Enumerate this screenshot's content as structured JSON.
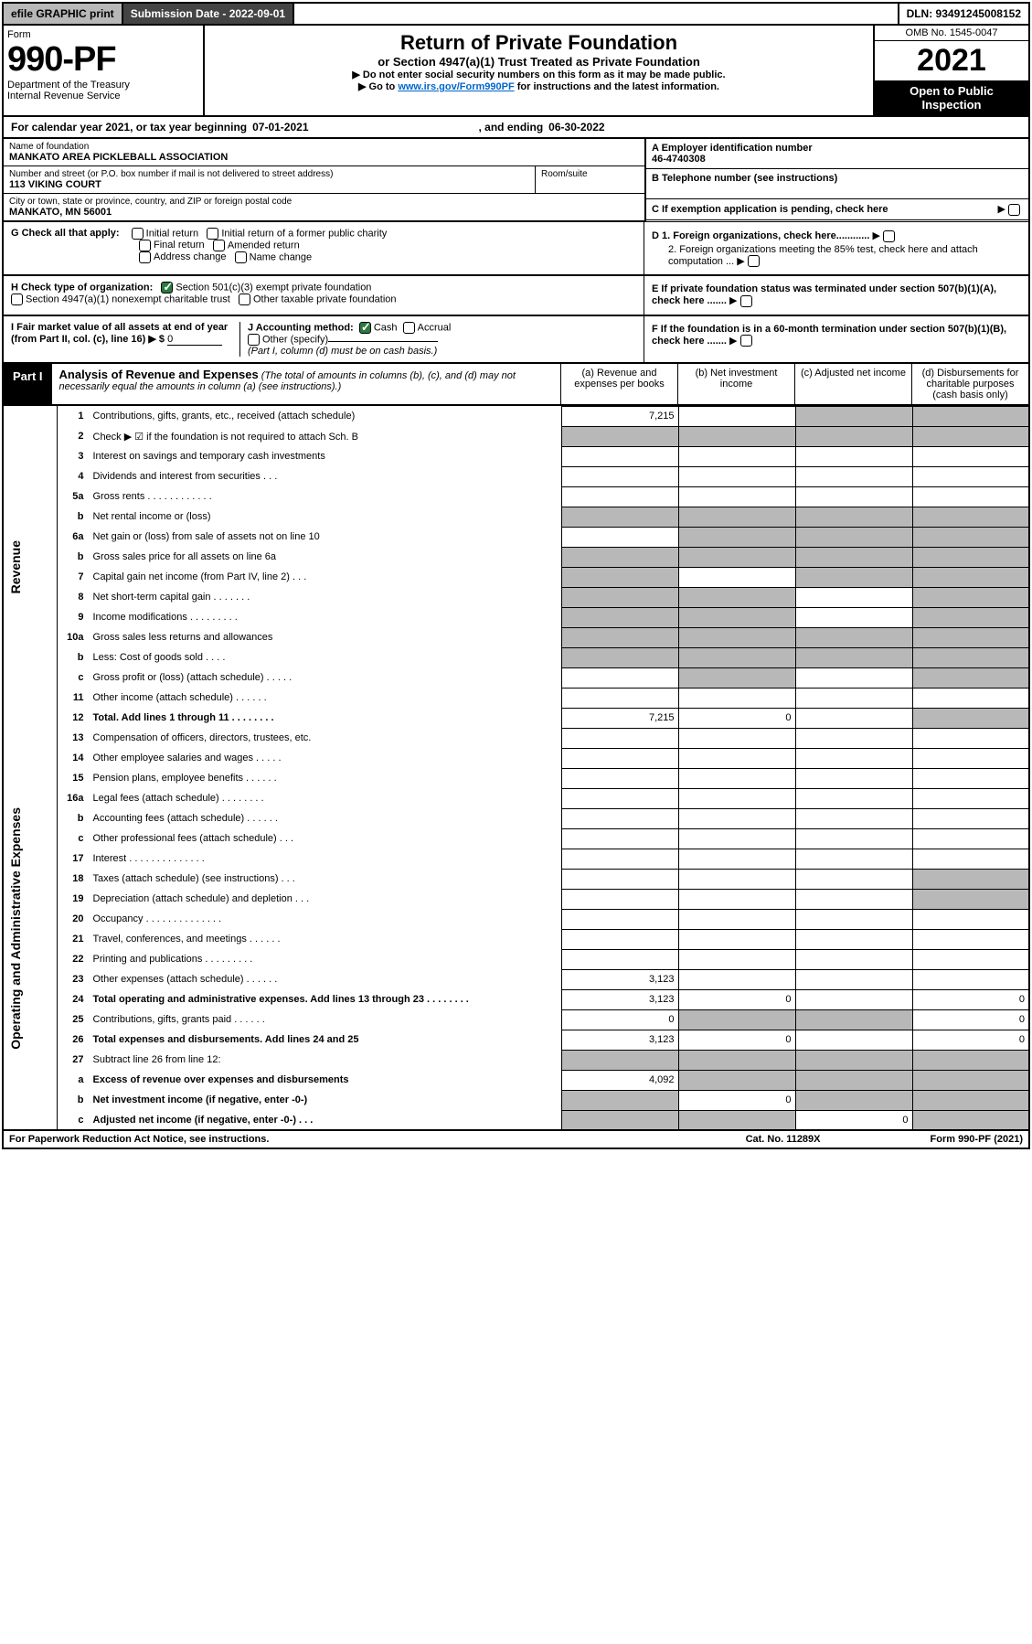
{
  "topbar": {
    "efile": "efile GRAPHIC print",
    "subdate_lbl": "Submission Date - 2022-09-01",
    "dln": "DLN: 93491245008152"
  },
  "header": {
    "form_lbl": "Form",
    "form_num": "990-PF",
    "dept": "Department of the Treasury",
    "irs": "Internal Revenue Service",
    "title": "Return of Private Foundation",
    "sub": "or Section 4947(a)(1) Trust Treated as Private Foundation",
    "note1": "▶ Do not enter social security numbers on this form as it may be made public.",
    "note2a": "▶ Go to ",
    "note2link": "www.irs.gov/Form990PF",
    "note2b": " for instructions and the latest information.",
    "omb": "OMB No. 1545-0047",
    "year": "2021",
    "open": "Open to Public Inspection"
  },
  "cal": {
    "prefix": "For calendar year 2021, or tax year beginning ",
    "start": "07-01-2021",
    "mid": ", and ending ",
    "end": "06-30-2022"
  },
  "info": {
    "name_lbl": "Name of foundation",
    "name": "MANKATO AREA PICKLEBALL ASSOCIATION",
    "addr_lbl": "Number and street (or P.O. box number if mail is not delivered to street address)",
    "addr": "113 VIKING COURT",
    "room_lbl": "Room/suite",
    "city_lbl": "City or town, state or province, country, and ZIP or foreign postal code",
    "city": "MANKATO, MN  56001",
    "a_lbl": "A Employer identification number",
    "ein": "46-4740308",
    "b_lbl": "B Telephone number (see instructions)",
    "c_lbl": "C If exemption application is pending, check here"
  },
  "g": {
    "lbl": "G Check all that apply:",
    "opts": [
      "Initial return",
      "Initial return of a former public charity",
      "Final return",
      "Amended return",
      "Address change",
      "Name change"
    ]
  },
  "h": {
    "lbl": "H Check type of organization:",
    "opt1": "Section 501(c)(3) exempt private foundation",
    "opt2": "Section 4947(a)(1) nonexempt charitable trust",
    "opt3": "Other taxable private foundation"
  },
  "i": {
    "lbl": "I Fair market value of all assets at end of year (from Part II, col. (c), line 16) ▶ $",
    "val": "0"
  },
  "j": {
    "lbl": "J Accounting method:",
    "opts": [
      "Cash",
      "Accrual",
      "Other (specify)"
    ],
    "note": "(Part I, column (d) must be on cash basis.)"
  },
  "d": {
    "d1": "D 1. Foreign organizations, check here............",
    "d2": "2. Foreign organizations meeting the 85% test, check here and attach computation ...",
    "e": "E  If private foundation status was terminated under section 507(b)(1)(A), check here .......",
    "f": "F  If the foundation is in a 60-month termination under section 507(b)(1)(B), check here ......."
  },
  "part1": {
    "lbl": "Part I",
    "ttl": "Analysis of Revenue and Expenses",
    "note": " (The total of amounts in columns (b), (c), and (d) may not necessarily equal the amounts in column (a) (see instructions).)",
    "cols": {
      "a": "(a)  Revenue and expenses per books",
      "b": "(b)  Net investment income",
      "c": "(c)  Adjusted net income",
      "d": "(d)  Disbursements for charitable purposes (cash basis only)"
    }
  },
  "side_labels": {
    "rev": "Revenue",
    "exp": "Operating and Administrative Expenses"
  },
  "rows": [
    {
      "n": "1",
      "t": "Contributions, gifts, grants, etc., received (attach schedule)",
      "a": "7,215",
      "cgrey": true,
      "dgrey": true
    },
    {
      "n": "2",
      "t": "Check ▶ ☑ if the foundation is not required to attach Sch. B",
      "allgrey": true
    },
    {
      "n": "3",
      "t": "Interest on savings and temporary cash investments"
    },
    {
      "n": "4",
      "t": "Dividends and interest from securities   .  .  ."
    },
    {
      "n": "5a",
      "t": "Gross rents   .  .  .  .  .  .  .  .  .  .  .  ."
    },
    {
      "n": "b",
      "t": "Net rental income or (loss)",
      "halfgrey": true
    },
    {
      "n": "6a",
      "t": "Net gain or (loss) from sale of assets not on line 10",
      "bcdgrey": true
    },
    {
      "n": "b",
      "t": "Gross sales price for all assets on line 6a",
      "halfgrey": true
    },
    {
      "n": "7",
      "t": "Capital gain net income (from Part IV, line 2)   .  .  .",
      "agrey": true,
      "cgrey": true,
      "dgrey": true
    },
    {
      "n": "8",
      "t": "Net short-term capital gain   .  .  .  .  .  .  .",
      "agrey": true,
      "bgrey": true,
      "dgrey": true
    },
    {
      "n": "9",
      "t": "Income modifications  .  .  .  .  .  .  .  .  .",
      "agrey": true,
      "bgrey": true,
      "dgrey": true
    },
    {
      "n": "10a",
      "t": "Gross sales less returns and allowances",
      "halfgrey": true
    },
    {
      "n": "b",
      "t": "Less: Cost of goods sold   .  .  .  .",
      "halfgrey": true
    },
    {
      "n": "c",
      "t": "Gross profit or (loss) (attach schedule)   .  .  .  .  .",
      "bgrey": true,
      "dgrey": true
    },
    {
      "n": "11",
      "t": "Other income (attach schedule)   .  .  .  .  .  ."
    },
    {
      "n": "12",
      "t": "Total. Add lines 1 through 11   .  .  .  .  .  .  .  .",
      "bold": true,
      "a": "7,215",
      "b": "0",
      "dgrey": true
    },
    {
      "n": "13",
      "t": "Compensation of officers, directors, trustees, etc."
    },
    {
      "n": "14",
      "t": "Other employee salaries and wages   .  .  .  .  ."
    },
    {
      "n": "15",
      "t": "Pension plans, employee benefits  .  .  .  .  .  ."
    },
    {
      "n": "16a",
      "t": "Legal fees (attach schedule) .  .  .  .  .  .  .  ."
    },
    {
      "n": "b",
      "t": "Accounting fees (attach schedule)  .  .  .  .  .  ."
    },
    {
      "n": "c",
      "t": "Other professional fees (attach schedule)   .  .  ."
    },
    {
      "n": "17",
      "t": "Interest  .  .  .  .  .  .  .  .  .  .  .  .  .  ."
    },
    {
      "n": "18",
      "t": "Taxes (attach schedule) (see instructions)   .  .  .",
      "dgrey": true
    },
    {
      "n": "19",
      "t": "Depreciation (attach schedule) and depletion   .  .  .",
      "dgrey": true
    },
    {
      "n": "20",
      "t": "Occupancy .  .  .  .  .  .  .  .  .  .  .  .  .  ."
    },
    {
      "n": "21",
      "t": "Travel, conferences, and meetings  .  .  .  .  .  ."
    },
    {
      "n": "22",
      "t": "Printing and publications  .  .  .  .  .  .  .  .  ."
    },
    {
      "n": "23",
      "t": "Other expenses (attach schedule)  .  .  .  .  .  .",
      "a": "3,123"
    },
    {
      "n": "24",
      "t": "Total operating and administrative expenses. Add lines 13 through 23   .  .  .  .  .  .  .  .",
      "bold": true,
      "a": "3,123",
      "b": "0",
      "d": "0"
    },
    {
      "n": "25",
      "t": "Contributions, gifts, grants paid   .  .  .  .  .  .",
      "a": "0",
      "bgrey": true,
      "cgrey": true,
      "d": "0"
    },
    {
      "n": "26",
      "t": "Total expenses and disbursements. Add lines 24 and 25",
      "bold": true,
      "a": "3,123",
      "b": "0",
      "d": "0"
    },
    {
      "n": "27",
      "t": "Subtract line 26 from line 12:",
      "allgrey": true
    },
    {
      "n": "a",
      "t": "Excess of revenue over expenses and disbursements",
      "bold": true,
      "a": "4,092",
      "bcdgrey": true
    },
    {
      "n": "b",
      "t": "Net investment income (if negative, enter -0-)",
      "bold": true,
      "agrey": true,
      "b": "0",
      "cgrey": true,
      "dgrey": true
    },
    {
      "n": "c",
      "t": "Adjusted net income (if negative, enter -0-)   .  .  .",
      "bold": true,
      "agrey": true,
      "bgrey": true,
      "c": "0",
      "dgrey": true
    }
  ],
  "footer": {
    "pra": "For Paperwork Reduction Act Notice, see instructions.",
    "cat": "Cat. No. 11289X",
    "form": "Form 990-PF (2021)"
  }
}
